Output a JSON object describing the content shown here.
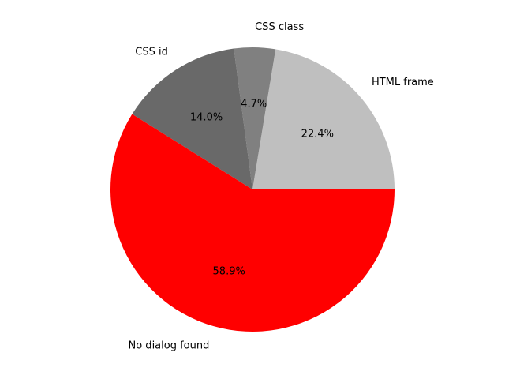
{
  "chart_data": {
    "type": "pie",
    "title": "",
    "legend": "none",
    "start_angle": 0,
    "direction": "counterclockwise",
    "slices": [
      {
        "label": "HTML frame",
        "value": 22.4,
        "pct_label": "22.4%",
        "color": "#bfbfbf"
      },
      {
        "label": "CSS class",
        "value": 4.7,
        "pct_label": "4.7%",
        "color": "#808080"
      },
      {
        "label": "CSS id",
        "value": 14.0,
        "pct_label": "14.0%",
        "color": "#696969"
      },
      {
        "label": "No dialog found",
        "value": 58.9,
        "pct_label": "58.9%",
        "color": "#ff0000"
      }
    ]
  }
}
